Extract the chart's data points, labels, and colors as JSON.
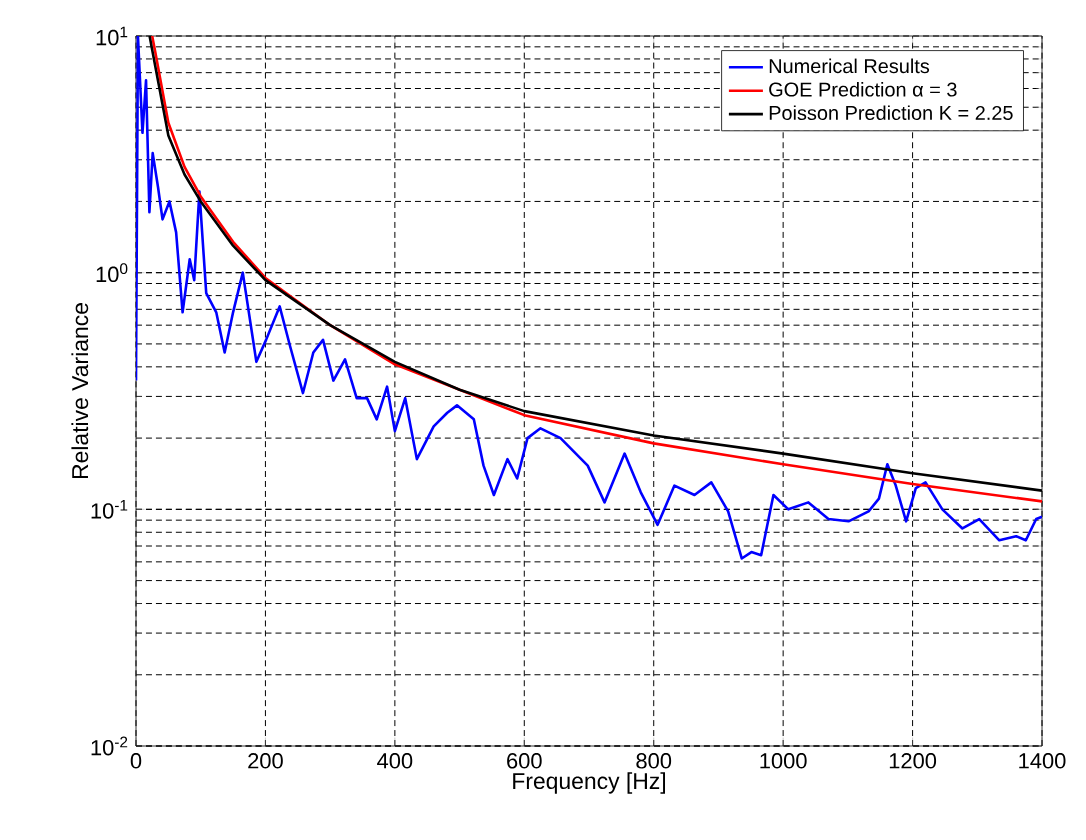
{
  "chart_data": {
    "type": "line",
    "xlabel": "Frequency [Hz]",
    "ylabel": "Relative Variance",
    "xlim": [
      0,
      1400
    ],
    "ylim": [
      0.01,
      10
    ],
    "log": "y",
    "grid": true,
    "legend": "top right",
    "marker": "none",
    "line_style": "solid",
    "xticks": [
      0,
      200,
      400,
      600,
      800,
      1000,
      1200,
      1400
    ],
    "yticks": [
      {
        "value": 0.01,
        "label": "10$^{-2}$"
      },
      {
        "value": 0.1,
        "label": "10$^{-1}$"
      },
      {
        "value": 1,
        "label": "10$^{0}$"
      },
      {
        "value": 10,
        "label": "10$^{1}$"
      }
    ],
    "series": [
      {
        "name": "Numerical Results",
        "color": "#0000ff",
        "x": [
          0,
          3,
          10,
          15.5,
          20.7,
          25.8,
          34,
          41,
          51.7,
          62,
          72,
          83,
          90,
          98,
          108.5,
          124,
          137,
          150,
          165,
          186,
          201,
          222,
          238,
          258,
          274,
          289,
          305,
          323,
          341,
          357,
          372,
          388,
          400,
          416,
          434,
          460,
          481,
          496,
          522,
          537,
          553,
          574,
          589,
          605,
          625,
          656,
          698,
          724,
          755,
          780,
          806,
          832,
          863,
          889,
          915,
          936,
          951,
          966,
          985,
          1008,
          1039,
          1070,
          1101,
          1132,
          1148,
          1161,
          1174,
          1190,
          1205,
          1220,
          1246,
          1277,
          1303,
          1334,
          1360,
          1375,
          1391,
          1400
        ],
        "values": [
          0.35,
          10,
          3.9,
          6.5,
          1.8,
          3.2,
          2.3,
          1.68,
          2.0,
          1.48,
          0.68,
          1.14,
          0.93,
          2.2,
          0.82,
          0.68,
          0.46,
          0.68,
          1.0,
          0.42,
          0.52,
          0.72,
          0.49,
          0.31,
          0.46,
          0.52,
          0.35,
          0.43,
          0.295,
          0.295,
          0.24,
          0.33,
          0.214,
          0.295,
          0.163,
          0.224,
          0.256,
          0.275,
          0.24,
          0.153,
          0.115,
          0.163,
          0.135,
          0.2,
          0.22,
          0.2,
          0.153,
          0.107,
          0.172,
          0.118,
          0.086,
          0.126,
          0.115,
          0.13,
          0.098,
          0.062,
          0.066,
          0.064,
          0.115,
          0.1,
          0.107,
          0.091,
          0.089,
          0.098,
          0.111,
          0.155,
          0.126,
          0.089,
          0.123,
          0.13,
          0.1,
          0.083,
          0.091,
          0.074,
          0.077,
          0.074,
          0.091,
          0.093
        ]
      },
      {
        "name": "GOE Prediction α = 3",
        "color": "#ff0000",
        "x": [
          25,
          30,
          50,
          75,
          100,
          150,
          200,
          300,
          400,
          600,
          800,
          1000,
          1200,
          1400
        ],
        "values": [
          10,
          8.5,
          4.3,
          2.8,
          2.1,
          1.35,
          0.95,
          0.6,
          0.41,
          0.25,
          0.19,
          0.155,
          0.128,
          0.108
        ]
      },
      {
        "name": "Poisson Prediction K = 2.25",
        "color": "#000000",
        "x": [
          21,
          30,
          50,
          75,
          100,
          150,
          200,
          300,
          400,
          500,
          600,
          800,
          1000,
          1200,
          1400
        ],
        "values": [
          10,
          7.4,
          3.8,
          2.6,
          2.0,
          1.3,
          0.93,
          0.6,
          0.42,
          0.32,
          0.26,
          0.205,
          0.172,
          0.142,
          0.12
        ]
      }
    ]
  }
}
